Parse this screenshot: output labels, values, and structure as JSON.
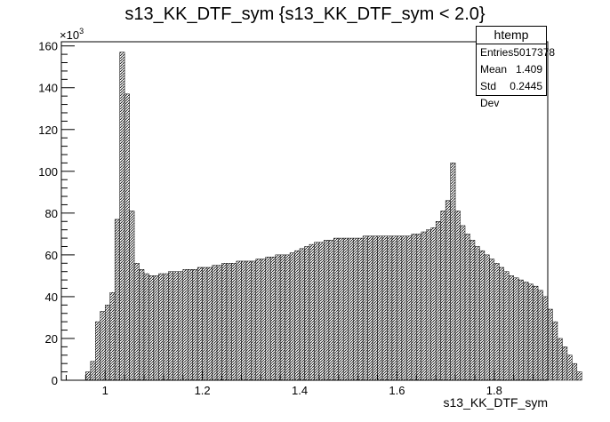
{
  "title": "s13_KK_DTF_sym {s13_KK_DTF_sym < 2.0}",
  "stats": {
    "name": "htemp",
    "rows": [
      {
        "label": "Entries",
        "value": "5017378"
      },
      {
        "label": "Mean",
        "value": "1.409"
      },
      {
        "label": "Std Dev",
        "value": "0.2445"
      }
    ]
  },
  "chart_data": {
    "type": "bar",
    "title": "s13_KK_DTF_sym {s13_KK_DTF_sym < 2.0}",
    "xlabel": "s13_KK_DTF_sym",
    "ylabel": "",
    "y_multiplier_label": "×10",
    "y_multiplier_exponent": "3",
    "xlim": [
      0.91,
      1.91
    ],
    "ylim": [
      0,
      162
    ],
    "xticks": [
      1,
      1.2,
      1.4,
      1.6,
      1.8
    ],
    "xtick_labels": [
      "1",
      "1.2",
      "1.4",
      "1.6",
      "1.8"
    ],
    "yticks": [
      0,
      20,
      40,
      60,
      80,
      100,
      120,
      140,
      160
    ],
    "ytick_labels": [
      "0",
      "20",
      "40",
      "60",
      "80",
      "100",
      "120",
      "140",
      "160"
    ],
    "bin_width": 0.01,
    "bin_start": 0.96,
    "values": [
      4,
      9,
      28,
      33,
      36,
      42,
      77,
      157,
      137,
      81,
      56,
      53,
      51,
      50,
      50,
      51,
      51,
      52,
      52,
      52,
      53,
      53,
      53,
      54,
      54,
      54,
      55,
      55,
      56,
      56,
      56,
      57,
      57,
      57,
      57,
      58,
      58,
      59,
      59,
      60,
      60,
      60,
      61,
      62,
      63,
      64,
      65,
      66,
      66,
      67,
      67,
      68,
      68,
      68,
      68,
      68,
      68,
      69,
      69,
      69,
      69,
      69,
      69,
      69,
      69,
      69,
      69,
      70,
      70,
      71,
      72,
      73,
      76,
      81,
      86,
      104,
      81,
      74,
      70,
      67,
      64,
      62,
      60,
      58,
      56,
      54,
      52,
      50,
      49,
      48,
      47,
      46,
      45,
      43,
      40,
      34,
      28,
      20,
      16,
      12,
      8,
      4
    ],
    "grid": false,
    "fill": "hatched"
  }
}
